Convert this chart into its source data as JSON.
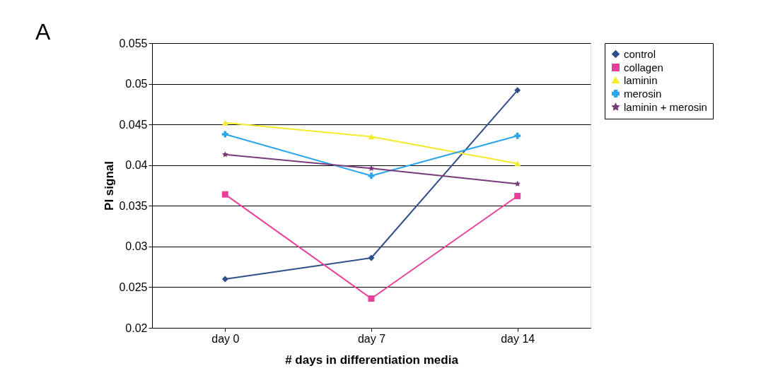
{
  "chart_data": {
    "type": "line",
    "xlabel": "# days in differentiation media",
    "ylabel": "PI signal",
    "annotations": [
      "A"
    ],
    "categories": [
      "day 0",
      "day 7",
      "day 14"
    ],
    "ylim": [
      0.02,
      0.055
    ],
    "yticks": [
      0.02,
      0.025,
      0.03,
      0.035,
      0.04,
      0.045,
      0.05,
      0.055
    ],
    "grid": "y",
    "legend": "right",
    "line_style": "solid",
    "series": [
      {
        "name": "control",
        "color": "#2f4f8a",
        "marker": "diamond",
        "values": [
          0.026,
          0.0286,
          0.0492
        ]
      },
      {
        "name": "collagen",
        "color": "#e8409a",
        "marker": "square",
        "values": [
          0.0364,
          0.0236,
          0.0362
        ]
      },
      {
        "name": "laminin",
        "color": "#f5ea2a",
        "marker": "triangle",
        "values": [
          0.0452,
          0.0435,
          0.0402
        ]
      },
      {
        "name": "merosin",
        "color": "#2aa4ea",
        "marker": "cross",
        "values": [
          0.0438,
          0.0387,
          0.0436
        ]
      },
      {
        "name": "laminin + merosin",
        "color": "#7a3a7a",
        "marker": "star",
        "values": [
          0.0413,
          0.0396,
          0.0377
        ]
      }
    ]
  }
}
